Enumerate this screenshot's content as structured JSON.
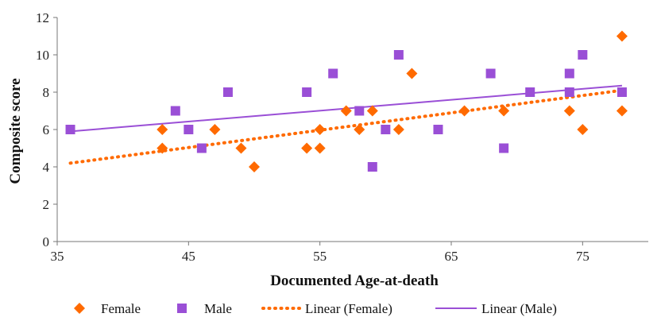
{
  "chart_data": {
    "type": "scatter",
    "xlabel": "Documented Age-at-death",
    "ylabel": "Composite score",
    "xlim": [
      35,
      80
    ],
    "ylim": [
      0,
      12
    ],
    "x_ticks": [
      35,
      45,
      55,
      65,
      75
    ],
    "y_ticks": [
      0,
      2,
      4,
      6,
      8,
      10,
      12
    ],
    "grid": false,
    "legend_position": "bottom",
    "series": [
      {
        "name": "Female",
        "marker": "diamond",
        "color": "#ff6a00",
        "points": [
          [
            43,
            6
          ],
          [
            43,
            5
          ],
          [
            47,
            6
          ],
          [
            49,
            5
          ],
          [
            50,
            4
          ],
          [
            54,
            5
          ],
          [
            55,
            6
          ],
          [
            55,
            5
          ],
          [
            57,
            7
          ],
          [
            58,
            6
          ],
          [
            59,
            7
          ],
          [
            61,
            6
          ],
          [
            62,
            9
          ],
          [
            66,
            7
          ],
          [
            69,
            7
          ],
          [
            74,
            7
          ],
          [
            75,
            6
          ],
          [
            78,
            11
          ],
          [
            78,
            7
          ]
        ]
      },
      {
        "name": "Male",
        "marker": "square",
        "color": "#9a4fd6",
        "points": [
          [
            36,
            6
          ],
          [
            44,
            7
          ],
          [
            45,
            6
          ],
          [
            46,
            5
          ],
          [
            48,
            8
          ],
          [
            54,
            8
          ],
          [
            56,
            9
          ],
          [
            58,
            7
          ],
          [
            59,
            4
          ],
          [
            60,
            6
          ],
          [
            61,
            10
          ],
          [
            64,
            6
          ],
          [
            68,
            9
          ],
          [
            69,
            5
          ],
          [
            71,
            8
          ],
          [
            74,
            9
          ],
          [
            74,
            8
          ],
          [
            75,
            10
          ],
          [
            78,
            8
          ]
        ]
      }
    ],
    "trendlines": [
      {
        "name": "Linear (Female)",
        "style": "dotted",
        "color": "#ff6a00",
        "x": [
          36,
          78
        ],
        "y": [
          4.2,
          8.1
        ]
      },
      {
        "name": "Linear (Male)",
        "style": "solid",
        "color": "#9a4fd6",
        "x": [
          36,
          78
        ],
        "y": [
          5.9,
          8.35
        ]
      }
    ]
  }
}
